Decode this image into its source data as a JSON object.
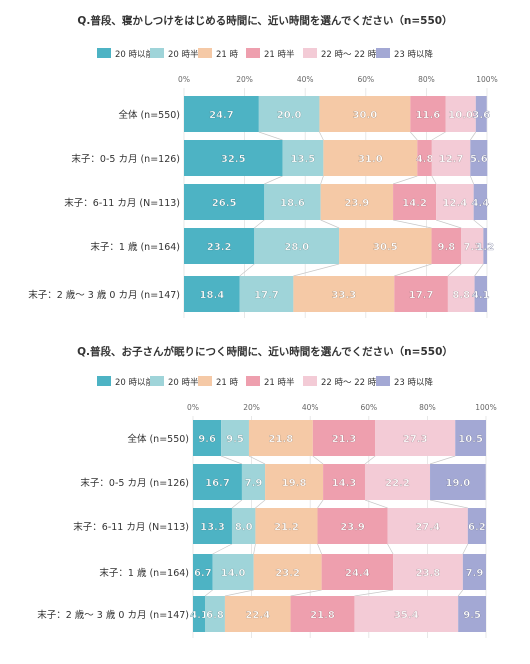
{
  "chart_data": [
    {
      "type": "bar",
      "orientation": "horizontal",
      "stacked": true,
      "title": "Q.普段、寝かしつけをはじめる時間に、近い時間を選んでください（n=550）",
      "xlim": [
        0,
        100
      ],
      "xticks": [
        "0%",
        "20%",
        "40%",
        "60%",
        "80%",
        "100%"
      ],
      "legend_position": "top",
      "categories": [
        "全体 (n=550)",
        "末子：0-5 カ月 (n=126)",
        "末子：6-11 カ月 (N=113)",
        "末子：1 歳 (n=164)",
        "末子：2 歳～ 3 歳 0 カ月 (n=147)"
      ],
      "series": [
        {
          "name": "20 時以前",
          "color": "#4db3c4",
          "values": [
            24.7,
            32.5,
            26.5,
            23.2,
            18.4
          ]
        },
        {
          "name": "20 時半",
          "color": "#9fd4d9",
          "values": [
            20.0,
            13.5,
            18.6,
            28.0,
            17.7
          ]
        },
        {
          "name": "21 時",
          "color": "#f5c9a6",
          "values": [
            30.0,
            31.0,
            23.9,
            30.5,
            33.3
          ]
        },
        {
          "name": "21 時半",
          "color": "#ee9fae",
          "values": [
            11.6,
            4.8,
            14.2,
            9.8,
            17.7
          ]
        },
        {
          "name": "22 時～ 22 時半",
          "color": "#f3cbd6",
          "values": [
            10.0,
            12.7,
            12.4,
            7.3,
            8.8
          ]
        },
        {
          "name": "23 時以降",
          "color": "#a3a8d4",
          "values": [
            3.6,
            5.6,
            4.4,
            1.2,
            4.1
          ]
        }
      ]
    },
    {
      "type": "bar",
      "orientation": "horizontal",
      "stacked": true,
      "title": "Q.普段、お子さんが眠りにつく時間に、近い時間を選んでください（n=550）",
      "xlim": [
        0,
        100
      ],
      "xticks": [
        "0%",
        "20%",
        "40%",
        "60%",
        "80%",
        "100%"
      ],
      "legend_position": "top",
      "categories": [
        "全体 (n=550)",
        "末子：0-5 カ月 (n=126)",
        "末子：6-11 カ月 (N=113)",
        "末子：1 歳 (n=164)",
        "末子：2 歳～ 3 歳 0 カ月 (n=147)"
      ],
      "series": [
        {
          "name": "20 時以前",
          "color": "#4db3c4",
          "values": [
            9.6,
            16.7,
            13.3,
            6.7,
            4.1
          ]
        },
        {
          "name": "20 時半",
          "color": "#9fd4d9",
          "values": [
            9.5,
            7.9,
            8.0,
            14.0,
            6.8
          ]
        },
        {
          "name": "21 時",
          "color": "#f5c9a6",
          "values": [
            21.8,
            19.8,
            21.2,
            23.2,
            22.4
          ]
        },
        {
          "name": "21 時半",
          "color": "#ee9fae",
          "values": [
            21.3,
            14.3,
            23.9,
            24.4,
            21.8
          ]
        },
        {
          "name": "22 時～ 22 時半",
          "color": "#f3cbd6",
          "values": [
            27.3,
            22.2,
            27.4,
            23.8,
            35.4
          ]
        },
        {
          "name": "23 時以降",
          "color": "#a3a8d4",
          "values": [
            10.5,
            19.0,
            6.2,
            7.9,
            9.5
          ]
        }
      ]
    }
  ]
}
